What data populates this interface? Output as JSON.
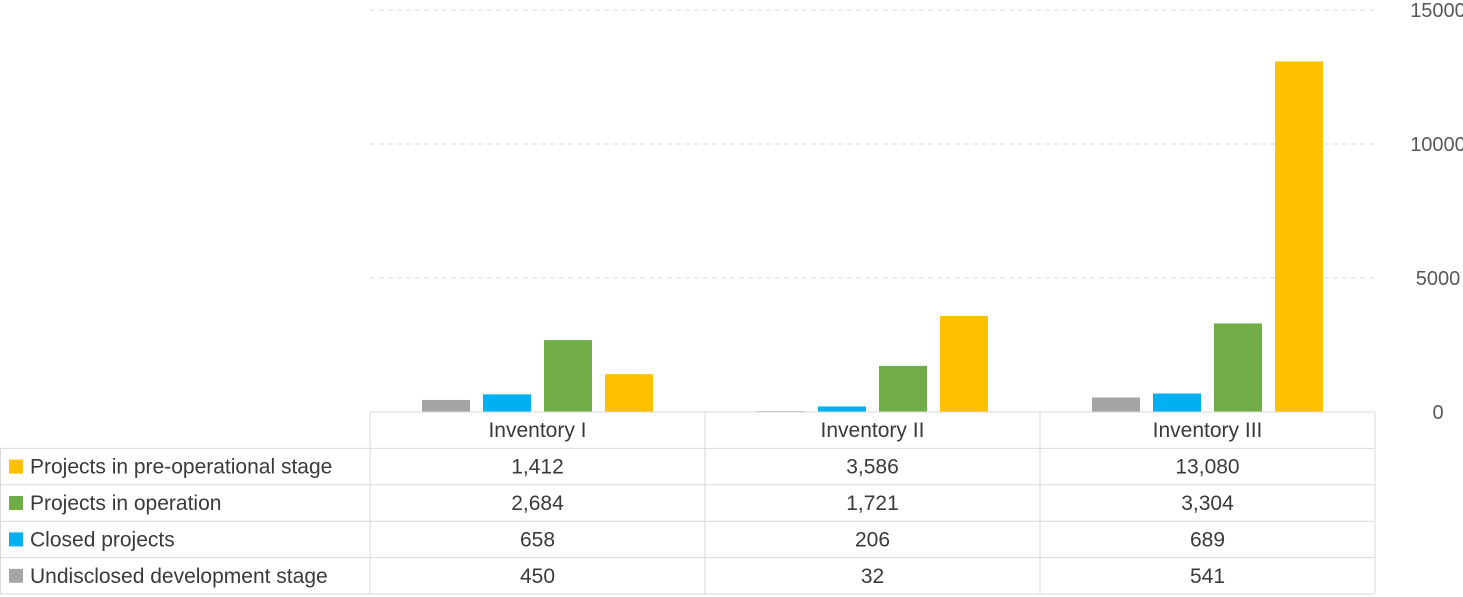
{
  "chart_data": {
    "type": "bar",
    "title": "",
    "xlabel": "",
    "ylabel": "",
    "categories": [
      "Inventory I",
      "Inventory II",
      "Inventory III"
    ],
    "series": [
      {
        "name": "Undisclosed development stage",
        "color": "#a5a5a5",
        "values": [
          450,
          32,
          541
        ],
        "labels": [
          "450",
          "32",
          "541"
        ]
      },
      {
        "name": "Closed projects",
        "color": "#00b0f0",
        "values": [
          658,
          206,
          689
        ],
        "labels": [
          "658",
          "206",
          "689"
        ]
      },
      {
        "name": "Projects in operation",
        "color": "#70ad47",
        "values": [
          2684,
          1721,
          3304
        ],
        "labels": [
          "2,684",
          "1,721",
          "3,304"
        ]
      },
      {
        "name": "Projects in pre-operational stage",
        "color": "#ffc000",
        "values": [
          1412,
          3586,
          13080
        ],
        "labels": [
          "1,412",
          "3,586",
          "13,080"
        ]
      }
    ],
    "table_row_order": [
      "Projects in pre-operational stage",
      "Projects in operation",
      "Closed projects",
      "Undisclosed development stage"
    ],
    "ylim": [
      0,
      15000
    ],
    "yticks": [
      0,
      5000,
      10000,
      15000
    ],
    "y_axis_side": "right",
    "grid": true,
    "legend": "data-table-below"
  }
}
